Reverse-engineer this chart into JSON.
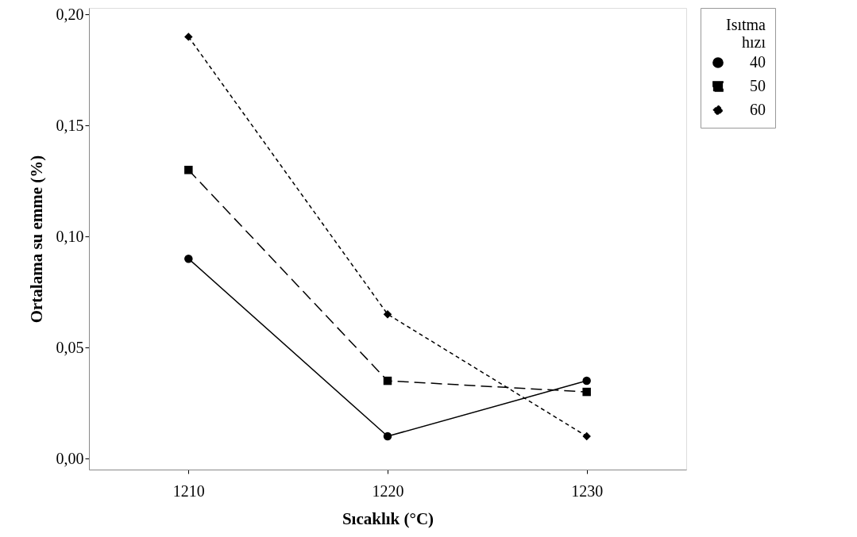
{
  "chart_data": {
    "type": "line",
    "xlabel": "Sıcaklık (°C)",
    "ylabel": "Ortalama su emme (%)",
    "legend_title": "Isıtma hızı",
    "legend": "top right",
    "grid": false,
    "x": [
      1210,
      1220,
      1230
    ],
    "xlim": [
      1205,
      1235
    ],
    "xticks": [
      1210,
      1220,
      1230
    ],
    "ylim": [
      -0.005,
      0.203
    ],
    "yticks": [
      {
        "value": 0,
        "label": "0,00"
      },
      {
        "value": 0.05,
        "label": "0,05"
      },
      {
        "value": 0.1,
        "label": "0,10"
      },
      {
        "value": 0.15,
        "label": "0,15"
      },
      {
        "value": 0.2,
        "label": "0,20"
      }
    ],
    "series": [
      {
        "name": "40",
        "color": "#000000",
        "marker": "circle",
        "line_style": "solid",
        "values": [
          0.09,
          0.01,
          0.035
        ]
      },
      {
        "name": "50",
        "color": "#000000",
        "marker": "square",
        "line_style": "dashed",
        "values": [
          0.13,
          0.035,
          0.03
        ]
      },
      {
        "name": "60",
        "color": "#000000",
        "marker": "diamond",
        "line_style": "dotted",
        "values": [
          0.19,
          0.065,
          0.01
        ]
      }
    ]
  }
}
